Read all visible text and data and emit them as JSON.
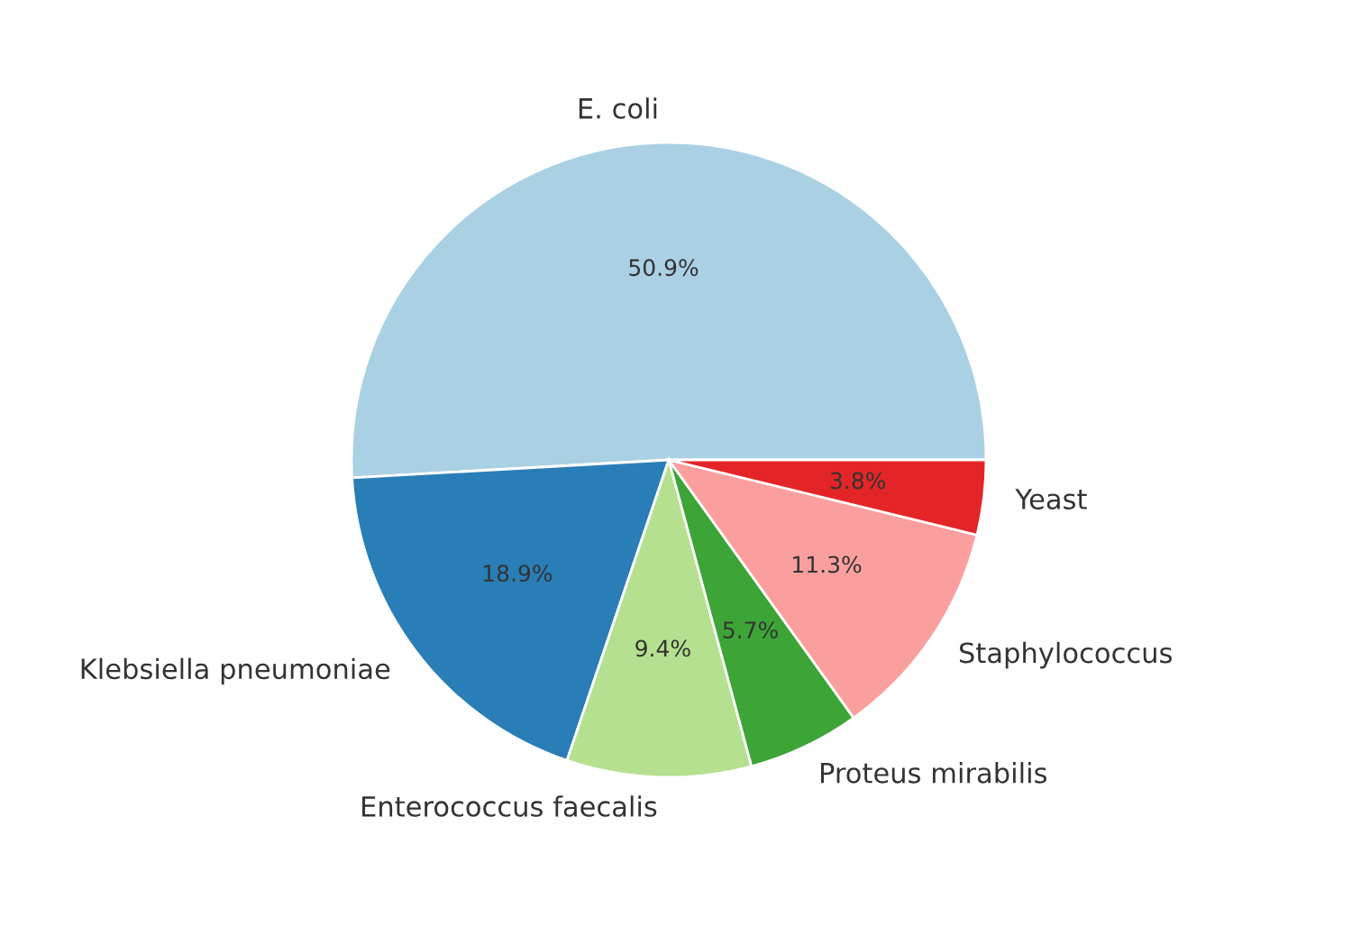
{
  "chart_data": {
    "type": "pie",
    "categories": [
      "E. coli",
      "Klebsiella pneumoniae",
      "Enterococcus faecalis",
      "Proteus mirabilis",
      "Staphylococcus",
      "Yeast"
    ],
    "values": [
      50.9,
      18.9,
      9.4,
      5.7,
      11.3,
      3.8
    ],
    "value_labels": [
      "50.9%",
      "18.9%",
      "9.4%",
      "5.7%",
      "11.3%",
      "3.8%"
    ],
    "colors": [
      "#a6cee3",
      "#1f78b4",
      "#b2df8a",
      "#33a02c",
      "#fb9a99",
      "#e31a1c"
    ]
  }
}
